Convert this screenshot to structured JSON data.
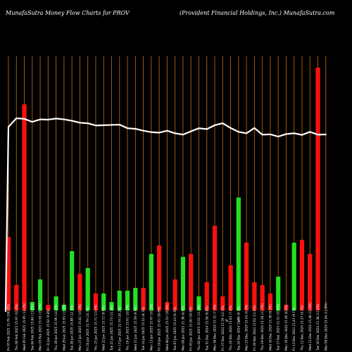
{
  "header": {
    "left": "MunafaSutra  Money Flow  Charts for PROV",
    "right": "(Provident Financial Holdings,  Inc.) MunafaSutra.com"
  },
  "chart_data": {
    "type": "bar",
    "categories": [
      "Fri 07 Feb 2025",
      "Thu 06 Feb 2025",
      "Wed 05 Feb 2025",
      "Tue 04 Feb 2025",
      "Mon 03 Feb 2025",
      "Fri 31 Jan 2025",
      "Thu 30 Jan 2025",
      "Wed 29 Jan 2025",
      "Tue 28 Jan 2025",
      "Mon 27 Jan 2025",
      "Fri 24 Jan 2025",
      "Thu 23 Jan 2025",
      "Wed 22 Jan 2025",
      "Tue 21 Jan 2025",
      "Fri 17 Jan 2025",
      "Thu 16 Jan 2025",
      "Wed 15 Jan 2025",
      "Tue 14 Jan 2025",
      "Mon 13 Jan 2025",
      "Fri 10 Jan 2025",
      "Wed 08 Jan 2025",
      "Tue 07 Jan 2025",
      "Mon 06 Jan 2025",
      "Fri 03 Jan 2025",
      "Thu 02 Jan 2025",
      "Tue 31 Dec 2024",
      "Mon 30 Dec 2024",
      "Fri 27 Dec 2024",
      "Thu 26 Dec 2024",
      "Tue 24 Dec 2024",
      "Mon 23 Dec 2024",
      "Fri 20 Dec 2024",
      "Thu 19 Dec 2024",
      "Wed 18 Dec 2024",
      "Tue 17 Dec 2024",
      "Mon 16 Dec 2024",
      "Fri 13 Dec 2024",
      "Thu 12 Dec 2024",
      "Wed 11 Dec 2024",
      "Tue 10 Dec 2024",
      "Mon 09 Dec 2024"
    ],
    "x_labels": [
      "15.76 (100.0%)",
      "15.97 (10.4%)",
      "15.95 (14.2%)",
      "15.84 (13.2%)",
      "15.93 (19.6%)",
      "15.92 (9.8%)",
      "15.96 (14.3%)",
      "15.93 (13.6%)",
      "15.88 (12.3%)",
      "15.81 (16.9%)",
      "15.79 (14.3%)",
      "15.71 (13.6%)",
      "15.72 (9.6%)",
      "15.73 (11.3%)",
      "15.74 (10.2%)",
      "15.61 (10.7%)",
      "15.59 (9.9%)",
      "15.52 (8.1%)",
      "15.47 (10.2%)",
      "15.45 (10.6%)",
      "15.52 (10.8%)",
      "15.43 (9.3%)",
      "15.38 (8.6%)",
      "15.50 (10.9%)",
      "15.61 (11.3%)",
      "15.58 (9.8%)",
      "15.72 (7.3%)",
      "15.79 (12.5%)",
      "15.62 (7.0%)",
      "15.48 (9.4%)",
      "15.43 (9.3%)",
      "15.62 (11.0%)",
      "15.38 (11.7%)",
      "15.39 (9.3%)",
      "15.31 (10.6%)",
      "15.40 (8.9%)",
      "15.43 (9.1%)",
      "15.37 (9.7%)",
      "15.48 (11.9%)",
      "15.38 (11.8%)",
      "15.04 (11.9%)"
    ],
    "flow_direction": [
      "red",
      "red",
      "red",
      "green",
      "green",
      "red",
      "green",
      "green",
      "green",
      "red",
      "green",
      "red",
      "green",
      "green",
      "green",
      "green",
      "green",
      "red",
      "green",
      "red",
      "red",
      "red",
      "green",
      "red",
      "green",
      "red",
      "red",
      "red",
      "red",
      "green",
      "red",
      "red",
      "red",
      "red",
      "green",
      "red",
      "green",
      "red",
      "red",
      "red",
      "red"
    ],
    "money_flow_values": [
      26,
      9,
      73,
      3,
      11,
      2,
      5,
      2,
      21,
      13,
      15,
      6,
      6,
      3,
      7,
      7,
      8,
      8,
      20,
      23,
      3,
      11,
      19,
      20,
      5,
      10,
      30,
      5,
      16,
      40,
      24,
      10,
      9,
      6,
      12,
      2,
      24,
      25,
      20,
      86,
      0
    ],
    "price_values": [
      15.76,
      15.97,
      15.95,
      15.84,
      15.93,
      15.92,
      15.96,
      15.93,
      15.88,
      15.81,
      15.79,
      15.71,
      15.72,
      15.73,
      15.74,
      15.61,
      15.59,
      15.52,
      15.47,
      15.45,
      15.52,
      15.43,
      15.38,
      15.5,
      15.61,
      15.58,
      15.72,
      15.79,
      15.62,
      15.48,
      15.43,
      15.62,
      15.38,
      15.39,
      15.31,
      15.4,
      15.43,
      15.37,
      15.48,
      15.38,
      15.04
    ],
    "mf_max": 90,
    "annotations": [
      "%",
      "%"
    ],
    "colors": {
      "background": "#000000",
      "gridline": "#b8600b",
      "green_bar": "#22e022",
      "red_bar": "#ff1010",
      "price_line": "#ffffff"
    },
    "grid": "vertical"
  }
}
